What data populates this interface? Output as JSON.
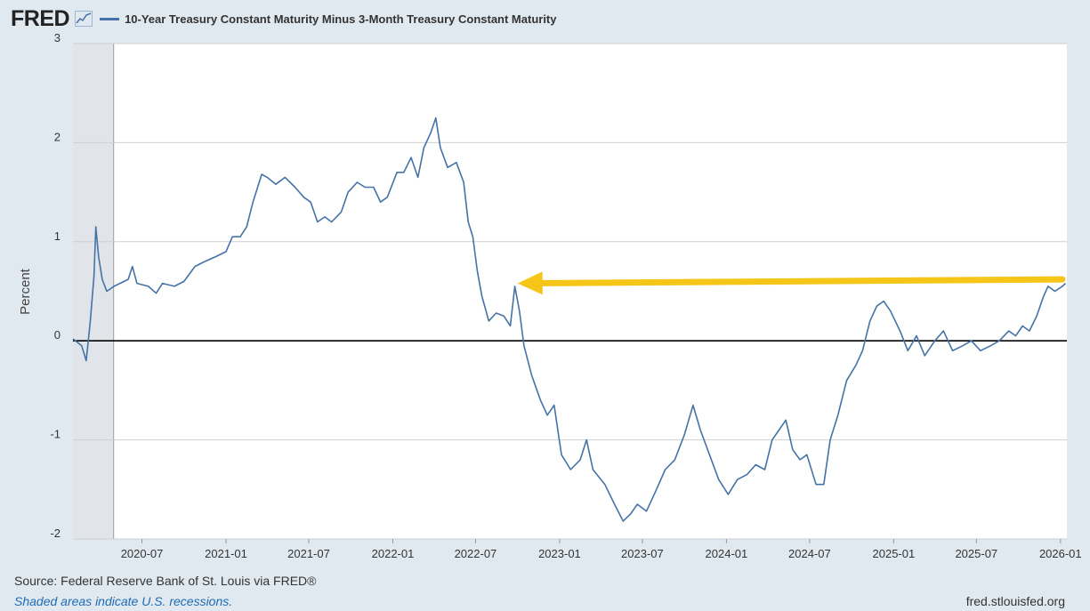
{
  "header": {
    "logo_text": "FRED",
    "logo_icon": "line-chart-icon"
  },
  "colors": {
    "series": "#4572a7",
    "zero_line": "#000000",
    "grid": "#cfcfcf",
    "recession": "#e1e5ea",
    "arrow": "#f5c518",
    "background": "#e1e9f0",
    "plot_background": "#ffffff"
  },
  "footer": {
    "source": "Source: Federal Reserve Bank of St. Louis via FRED®",
    "recession_note": "Shaded areas indicate U.S. recessions.",
    "site": "fred.stlouisfed.org"
  },
  "chart_data": {
    "type": "line",
    "title": "",
    "xlabel": "",
    "ylabel": "Percent",
    "ylim": [
      -2,
      3
    ],
    "xlim": [
      "2020-02-01",
      "2026-01-15"
    ],
    "yticks": [
      {
        "value": 3,
        "label": "3"
      },
      {
        "value": 2,
        "label": "2"
      },
      {
        "value": 1,
        "label": "1"
      },
      {
        "value": 0,
        "label": "0"
      },
      {
        "value": -1,
        "label": "-1"
      },
      {
        "value": -2,
        "label": "-2"
      }
    ],
    "xticks": [
      {
        "date": "2020-07-01",
        "label": "2020-07"
      },
      {
        "date": "2021-01-01",
        "label": "2021-01"
      },
      {
        "date": "2021-07-01",
        "label": "2021-07"
      },
      {
        "date": "2022-01-01",
        "label": "2022-01"
      },
      {
        "date": "2022-07-01",
        "label": "2022-07"
      },
      {
        "date": "2023-01-01",
        "label": "2023-01"
      },
      {
        "date": "2023-07-01",
        "label": "2023-07"
      },
      {
        "date": "2024-01-01",
        "label": "2024-01"
      },
      {
        "date": "2024-07-01",
        "label": "2024-07"
      },
      {
        "date": "2025-01-01",
        "label": "2025-01"
      },
      {
        "date": "2025-07-01",
        "label": "2025-07"
      },
      {
        "date": "2026-01-01",
        "label": "2026-01"
      }
    ],
    "grid": true,
    "zero_line": true,
    "recessions": [
      {
        "start": "2020-02-01",
        "end": "2020-04-30"
      }
    ],
    "annotations": [
      {
        "type": "arrow",
        "from": {
          "date": "2026-01-05",
          "value": 0.62
        },
        "to": {
          "date": "2022-10-01",
          "value": 0.58
        }
      }
    ],
    "series": [
      {
        "name": "10-Year Treasury Constant Maturity Minus 3-Month Treasury Constant Maturity",
        "points": [
          {
            "date": "2020-02-01",
            "value": 0.02
          },
          {
            "date": "2020-02-20",
            "value": -0.05
          },
          {
            "date": "2020-03-01",
            "value": -0.2
          },
          {
            "date": "2020-03-10",
            "value": 0.2
          },
          {
            "date": "2020-03-18",
            "value": 0.65
          },
          {
            "date": "2020-03-22",
            "value": 1.15
          },
          {
            "date": "2020-03-28",
            "value": 0.85
          },
          {
            "date": "2020-04-05",
            "value": 0.62
          },
          {
            "date": "2020-04-15",
            "value": 0.5
          },
          {
            "date": "2020-05-01",
            "value": 0.55
          },
          {
            "date": "2020-06-01",
            "value": 0.62
          },
          {
            "date": "2020-06-10",
            "value": 0.75
          },
          {
            "date": "2020-06-20",
            "value": 0.58
          },
          {
            "date": "2020-07-15",
            "value": 0.55
          },
          {
            "date": "2020-08-01",
            "value": 0.48
          },
          {
            "date": "2020-08-15",
            "value": 0.58
          },
          {
            "date": "2020-09-10",
            "value": 0.55
          },
          {
            "date": "2020-10-01",
            "value": 0.6
          },
          {
            "date": "2020-10-25",
            "value": 0.75
          },
          {
            "date": "2020-11-15",
            "value": 0.8
          },
          {
            "date": "2020-12-10",
            "value": 0.85
          },
          {
            "date": "2021-01-01",
            "value": 0.9
          },
          {
            "date": "2021-01-15",
            "value": 1.05
          },
          {
            "date": "2021-02-01",
            "value": 1.05
          },
          {
            "date": "2021-02-15",
            "value": 1.15
          },
          {
            "date": "2021-03-01",
            "value": 1.4
          },
          {
            "date": "2021-03-20",
            "value": 1.68
          },
          {
            "date": "2021-04-01",
            "value": 1.65
          },
          {
            "date": "2021-04-20",
            "value": 1.58
          },
          {
            "date": "2021-05-10",
            "value": 1.65
          },
          {
            "date": "2021-06-01",
            "value": 1.55
          },
          {
            "date": "2021-06-20",
            "value": 1.45
          },
          {
            "date": "2021-07-05",
            "value": 1.4
          },
          {
            "date": "2021-07-20",
            "value": 1.2
          },
          {
            "date": "2021-08-05",
            "value": 1.25
          },
          {
            "date": "2021-08-20",
            "value": 1.2
          },
          {
            "date": "2021-09-10",
            "value": 1.3
          },
          {
            "date": "2021-09-25",
            "value": 1.5
          },
          {
            "date": "2021-10-15",
            "value": 1.6
          },
          {
            "date": "2021-11-01",
            "value": 1.55
          },
          {
            "date": "2021-11-20",
            "value": 1.55
          },
          {
            "date": "2021-12-05",
            "value": 1.4
          },
          {
            "date": "2021-12-20",
            "value": 1.45
          },
          {
            "date": "2022-01-10",
            "value": 1.7
          },
          {
            "date": "2022-01-25",
            "value": 1.7
          },
          {
            "date": "2022-02-10",
            "value": 1.85
          },
          {
            "date": "2022-02-25",
            "value": 1.65
          },
          {
            "date": "2022-03-10",
            "value": 1.95
          },
          {
            "date": "2022-03-25",
            "value": 2.1
          },
          {
            "date": "2022-04-05",
            "value": 2.25
          },
          {
            "date": "2022-04-15",
            "value": 1.95
          },
          {
            "date": "2022-05-01",
            "value": 1.75
          },
          {
            "date": "2022-05-20",
            "value": 1.8
          },
          {
            "date": "2022-06-05",
            "value": 1.6
          },
          {
            "date": "2022-06-15",
            "value": 1.2
          },
          {
            "date": "2022-06-25",
            "value": 1.05
          },
          {
            "date": "2022-07-05",
            "value": 0.7
          },
          {
            "date": "2022-07-15",
            "value": 0.45
          },
          {
            "date": "2022-07-30",
            "value": 0.2
          },
          {
            "date": "2022-08-15",
            "value": 0.28
          },
          {
            "date": "2022-09-01",
            "value": 0.25
          },
          {
            "date": "2022-09-15",
            "value": 0.15
          },
          {
            "date": "2022-09-25",
            "value": 0.55
          },
          {
            "date": "2022-10-05",
            "value": 0.3
          },
          {
            "date": "2022-10-15",
            "value": -0.05
          },
          {
            "date": "2022-11-01",
            "value": -0.35
          },
          {
            "date": "2022-11-20",
            "value": -0.6
          },
          {
            "date": "2022-12-05",
            "value": -0.75
          },
          {
            "date": "2022-12-20",
            "value": -0.65
          },
          {
            "date": "2023-01-05",
            "value": -1.15
          },
          {
            "date": "2023-01-25",
            "value": -1.3
          },
          {
            "date": "2023-02-15",
            "value": -1.2
          },
          {
            "date": "2023-03-01",
            "value": -1.0
          },
          {
            "date": "2023-03-15",
            "value": -1.3
          },
          {
            "date": "2023-04-10",
            "value": -1.45
          },
          {
            "date": "2023-05-01",
            "value": -1.65
          },
          {
            "date": "2023-05-20",
            "value": -1.82
          },
          {
            "date": "2023-06-05",
            "value": -1.75
          },
          {
            "date": "2023-06-20",
            "value": -1.65
          },
          {
            "date": "2023-07-10",
            "value": -1.72
          },
          {
            "date": "2023-08-01",
            "value": -1.5
          },
          {
            "date": "2023-08-20",
            "value": -1.3
          },
          {
            "date": "2023-09-10",
            "value": -1.2
          },
          {
            "date": "2023-10-01",
            "value": -0.95
          },
          {
            "date": "2023-10-20",
            "value": -0.65
          },
          {
            "date": "2023-11-05",
            "value": -0.9
          },
          {
            "date": "2023-11-25",
            "value": -1.15
          },
          {
            "date": "2023-12-15",
            "value": -1.4
          },
          {
            "date": "2024-01-05",
            "value": -1.55
          },
          {
            "date": "2024-01-25",
            "value": -1.4
          },
          {
            "date": "2024-02-15",
            "value": -1.35
          },
          {
            "date": "2024-03-05",
            "value": -1.25
          },
          {
            "date": "2024-03-25",
            "value": -1.3
          },
          {
            "date": "2024-04-10",
            "value": -1.0
          },
          {
            "date": "2024-04-25",
            "value": -0.9
          },
          {
            "date": "2024-05-10",
            "value": -0.8
          },
          {
            "date": "2024-05-25",
            "value": -1.1
          },
          {
            "date": "2024-06-10",
            "value": -1.2
          },
          {
            "date": "2024-06-25",
            "value": -1.15
          },
          {
            "date": "2024-07-15",
            "value": -1.45
          },
          {
            "date": "2024-08-01",
            "value": -1.45
          },
          {
            "date": "2024-08-15",
            "value": -1.0
          },
          {
            "date": "2024-09-01",
            "value": -0.75
          },
          {
            "date": "2024-09-20",
            "value": -0.4
          },
          {
            "date": "2024-10-10",
            "value": -0.25
          },
          {
            "date": "2024-10-25",
            "value": -0.1
          },
          {
            "date": "2024-11-10",
            "value": 0.2
          },
          {
            "date": "2024-11-25",
            "value": 0.35
          },
          {
            "date": "2024-12-10",
            "value": 0.4
          },
          {
            "date": "2024-12-25",
            "value": 0.3
          },
          {
            "date": "2025-01-15",
            "value": 0.1
          },
          {
            "date": "2025-02-01",
            "value": -0.1
          },
          {
            "date": "2025-02-20",
            "value": 0.05
          },
          {
            "date": "2025-03-10",
            "value": -0.15
          },
          {
            "date": "2025-04-01",
            "value": 0.0
          },
          {
            "date": "2025-04-20",
            "value": 0.1
          },
          {
            "date": "2025-05-10",
            "value": -0.1
          },
          {
            "date": "2025-06-01",
            "value": -0.05
          },
          {
            "date": "2025-06-20",
            "value": 0.0
          },
          {
            "date": "2025-07-10",
            "value": -0.1
          },
          {
            "date": "2025-08-01",
            "value": -0.05
          },
          {
            "date": "2025-08-20",
            "value": 0.0
          },
          {
            "date": "2025-09-10",
            "value": 0.1
          },
          {
            "date": "2025-09-25",
            "value": 0.05
          },
          {
            "date": "2025-10-10",
            "value": 0.15
          },
          {
            "date": "2025-10-25",
            "value": 0.1
          },
          {
            "date": "2025-11-10",
            "value": 0.25
          },
          {
            "date": "2025-11-25",
            "value": 0.45
          },
          {
            "date": "2025-12-05",
            "value": 0.55
          },
          {
            "date": "2025-12-20",
            "value": 0.5
          },
          {
            "date": "2026-01-05",
            "value": 0.55
          },
          {
            "date": "2026-01-12",
            "value": 0.58
          }
        ]
      }
    ]
  }
}
